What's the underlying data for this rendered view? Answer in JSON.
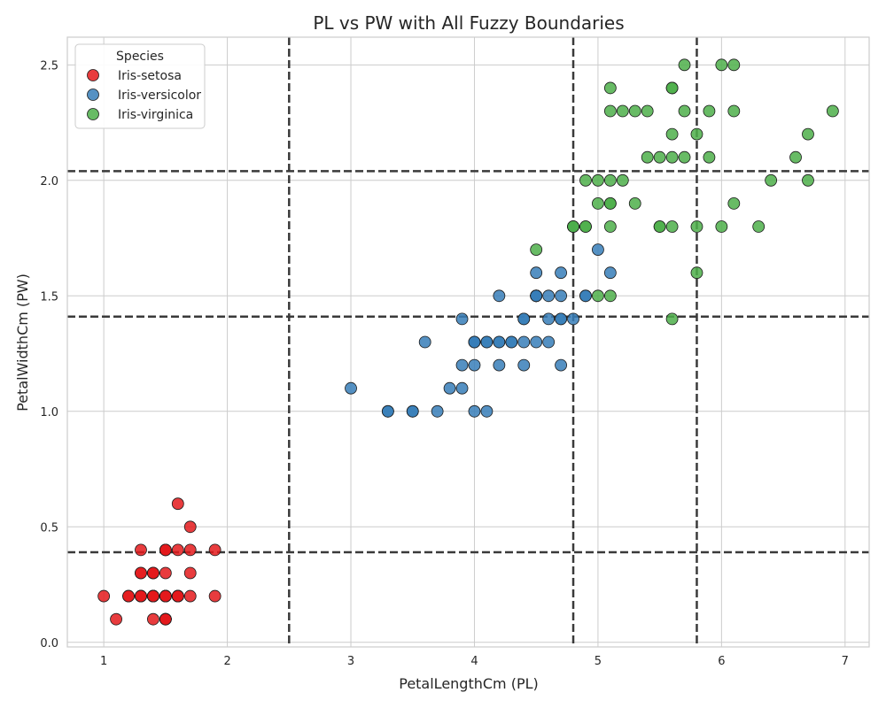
{
  "chart_data": {
    "type": "scatter",
    "title": "PL vs PW with All Fuzzy Boundaries",
    "xlabel": "PetalLengthCm (PL)",
    "ylabel": "PetalWidthCm (PW)",
    "xlim": [
      0.705,
      7.195
    ],
    "ylim": [
      -0.02,
      2.62
    ],
    "xticks": [
      1,
      2,
      3,
      4,
      5,
      6,
      7
    ],
    "xtick_labels": [
      "1",
      "2",
      "3",
      "4",
      "5",
      "6",
      "7"
    ],
    "yticks": [
      0.0,
      0.5,
      1.0,
      1.5,
      2.0,
      2.5
    ],
    "ytick_labels": [
      "0.0",
      "0.5",
      "1.0",
      "1.5",
      "2.0",
      "2.5"
    ],
    "grid": true,
    "legend": {
      "title": "Species",
      "position": "top-left"
    },
    "boundaries": {
      "vertical": [
        2.5,
        4.8,
        5.8
      ],
      "horizontal": [
        0.39,
        1.41,
        2.04
      ],
      "color": "#3a3a3a"
    },
    "series": [
      {
        "name": "Iris-setosa",
        "color": "#e41a1c",
        "points": [
          [
            1.4,
            0.2
          ],
          [
            1.4,
            0.2
          ],
          [
            1.3,
            0.2
          ],
          [
            1.5,
            0.2
          ],
          [
            1.4,
            0.2
          ],
          [
            1.7,
            0.4
          ],
          [
            1.4,
            0.3
          ],
          [
            1.5,
            0.2
          ],
          [
            1.4,
            0.2
          ],
          [
            1.5,
            0.1
          ],
          [
            1.5,
            0.2
          ],
          [
            1.6,
            0.2
          ],
          [
            1.4,
            0.1
          ],
          [
            1.1,
            0.1
          ],
          [
            1.2,
            0.2
          ],
          [
            1.5,
            0.4
          ],
          [
            1.3,
            0.4
          ],
          [
            1.4,
            0.3
          ],
          [
            1.7,
            0.3
          ],
          [
            1.5,
            0.3
          ],
          [
            1.7,
            0.2
          ],
          [
            1.5,
            0.4
          ],
          [
            1.0,
            0.2
          ],
          [
            1.7,
            0.5
          ],
          [
            1.9,
            0.2
          ],
          [
            1.6,
            0.2
          ],
          [
            1.6,
            0.4
          ],
          [
            1.5,
            0.2
          ],
          [
            1.4,
            0.2
          ],
          [
            1.6,
            0.2
          ],
          [
            1.6,
            0.2
          ],
          [
            1.5,
            0.4
          ],
          [
            1.5,
            0.1
          ],
          [
            1.4,
            0.2
          ],
          [
            1.5,
            0.1
          ],
          [
            1.2,
            0.2
          ],
          [
            1.3,
            0.2
          ],
          [
            1.5,
            0.1
          ],
          [
            1.3,
            0.2
          ],
          [
            1.5,
            0.2
          ],
          [
            1.3,
            0.3
          ],
          [
            1.3,
            0.3
          ],
          [
            1.3,
            0.2
          ],
          [
            1.6,
            0.6
          ],
          [
            1.9,
            0.4
          ],
          [
            1.4,
            0.3
          ],
          [
            1.6,
            0.2
          ],
          [
            1.4,
            0.2
          ],
          [
            1.5,
            0.2
          ],
          [
            1.4,
            0.2
          ]
        ]
      },
      {
        "name": "Iris-versicolor",
        "color": "#377eb8",
        "points": [
          [
            4.7,
            1.4
          ],
          [
            4.5,
            1.5
          ],
          [
            4.9,
            1.5
          ],
          [
            4.0,
            1.3
          ],
          [
            4.6,
            1.5
          ],
          [
            4.5,
            1.3
          ],
          [
            4.7,
            1.6
          ],
          [
            3.3,
            1.0
          ],
          [
            4.6,
            1.3
          ],
          [
            3.9,
            1.4
          ],
          [
            3.5,
            1.0
          ],
          [
            4.2,
            1.5
          ],
          [
            4.0,
            1.0
          ],
          [
            4.7,
            1.4
          ],
          [
            3.6,
            1.3
          ],
          [
            4.4,
            1.4
          ],
          [
            4.5,
            1.5
          ],
          [
            4.1,
            1.0
          ],
          [
            4.5,
            1.5
          ],
          [
            3.9,
            1.1
          ],
          [
            4.8,
            1.8
          ],
          [
            4.0,
            1.3
          ],
          [
            4.9,
            1.5
          ],
          [
            4.7,
            1.2
          ],
          [
            4.3,
            1.3
          ],
          [
            4.4,
            1.4
          ],
          [
            4.8,
            1.4
          ],
          [
            5.0,
            1.7
          ],
          [
            4.5,
            1.5
          ],
          [
            3.5,
            1.0
          ],
          [
            3.8,
            1.1
          ],
          [
            3.7,
            1.0
          ],
          [
            3.9,
            1.2
          ],
          [
            5.1,
            1.6
          ],
          [
            4.5,
            1.5
          ],
          [
            4.5,
            1.6
          ],
          [
            4.7,
            1.5
          ],
          [
            4.4,
            1.3
          ],
          [
            4.1,
            1.3
          ],
          [
            4.0,
            1.3
          ],
          [
            4.4,
            1.2
          ],
          [
            4.6,
            1.4
          ],
          [
            4.0,
            1.2
          ],
          [
            3.3,
            1.0
          ],
          [
            4.2,
            1.3
          ],
          [
            4.2,
            1.2
          ],
          [
            4.2,
            1.3
          ],
          [
            4.3,
            1.3
          ],
          [
            3.0,
            1.1
          ],
          [
            4.1,
            1.3
          ]
        ]
      },
      {
        "name": "Iris-virginica",
        "color": "#4daf4a",
        "points": [
          [
            6.0,
            2.5
          ],
          [
            5.1,
            1.9
          ],
          [
            5.9,
            2.1
          ],
          [
            5.6,
            1.8
          ],
          [
            5.8,
            2.2
          ],
          [
            6.6,
            2.1
          ],
          [
            4.5,
            1.7
          ],
          [
            6.3,
            1.8
          ],
          [
            5.8,
            1.8
          ],
          [
            6.1,
            2.5
          ],
          [
            5.1,
            2.0
          ],
          [
            5.3,
            1.9
          ],
          [
            5.5,
            2.1
          ],
          [
            5.0,
            2.0
          ],
          [
            5.1,
            2.4
          ],
          [
            5.3,
            2.3
          ],
          [
            5.5,
            1.8
          ],
          [
            6.7,
            2.2
          ],
          [
            6.9,
            2.3
          ],
          [
            5.0,
            1.5
          ],
          [
            5.7,
            2.3
          ],
          [
            4.9,
            2.0
          ],
          [
            6.7,
            2.0
          ],
          [
            4.9,
            1.8
          ],
          [
            5.7,
            2.1
          ],
          [
            6.0,
            1.8
          ],
          [
            4.8,
            1.8
          ],
          [
            4.9,
            1.8
          ],
          [
            5.6,
            2.1
          ],
          [
            5.8,
            1.6
          ],
          [
            6.1,
            1.9
          ],
          [
            6.4,
            2.0
          ],
          [
            5.6,
            2.2
          ],
          [
            5.1,
            1.5
          ],
          [
            5.6,
            1.4
          ],
          [
            6.1,
            2.3
          ],
          [
            5.6,
            2.4
          ],
          [
            5.5,
            1.8
          ],
          [
            4.8,
            1.8
          ],
          [
            5.4,
            2.1
          ],
          [
            5.6,
            2.4
          ],
          [
            5.1,
            2.3
          ],
          [
            5.1,
            1.9
          ],
          [
            5.9,
            2.3
          ],
          [
            5.7,
            2.5
          ],
          [
            5.2,
            2.3
          ],
          [
            5.0,
            1.9
          ],
          [
            5.2,
            2.0
          ],
          [
            5.4,
            2.3
          ],
          [
            5.1,
            1.8
          ]
        ]
      }
    ]
  }
}
